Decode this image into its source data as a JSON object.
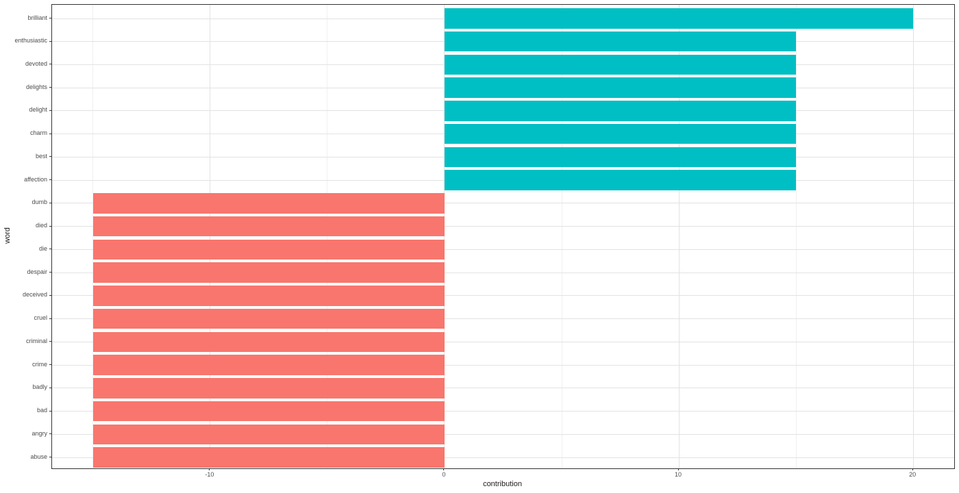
{
  "figure": {
    "background": "#FFFFFF",
    "panel_border_color": "#333333",
    "grid_major_color": "#E2E2E2",
    "grid_minor_color": "#F0F0F0",
    "tick_mark_color": "#333333",
    "tick_label_color": "#4D4D4D",
    "axis_title_color": "#1A1A1A"
  },
  "chart_data": {
    "type": "bar",
    "orientation": "horizontal",
    "title": "",
    "xlabel": "contribution",
    "ylabel": "word",
    "legend": "none",
    "grid": "major x+y, minor x",
    "categories": [
      "brilliant",
      "enthusiastic",
      "devoted",
      "delights",
      "delight",
      "charm",
      "best",
      "affection",
      "dumb",
      "died",
      "die",
      "despair",
      "deceived",
      "cruel",
      "criminal",
      "crime",
      "badly",
      "bad",
      "angry",
      "abuse"
    ],
    "values": [
      20,
      15,
      15,
      15,
      15,
      15,
      15,
      15,
      -15,
      -15,
      -15,
      -15,
      -15,
      -15,
      -15,
      -15,
      -15,
      -15,
      -15,
      -15
    ],
    "positive_color": "#00BFC4",
    "negative_color": "#F8766D",
    "xlim": [
      -16.75,
      21.75
    ],
    "x_major_ticks": [
      -10,
      0,
      10,
      20
    ],
    "x_major_tick_labels": [
      "-10",
      "0",
      "10",
      "20"
    ],
    "x_minor_ticks": [
      -15,
      -5,
      5,
      15
    ]
  }
}
